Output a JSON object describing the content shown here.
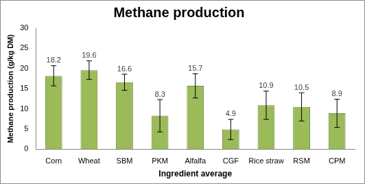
{
  "chart_data": {
    "type": "bar",
    "title": "Methane production",
    "x_label": "Ingredient average",
    "y_label": "Methane production (g/kg DM)",
    "categories": [
      "Corn",
      "Wheat",
      "SBM",
      "PKM",
      "Alfalfa",
      "CGF",
      "Rice straw",
      "RSM",
      "CPM"
    ],
    "values": [
      18.2,
      19.6,
      16.6,
      8.3,
      15.7,
      4.9,
      10.9,
      10.5,
      8.9
    ],
    "errors": [
      2.5,
      2.3,
      2.0,
      4.0,
      3.0,
      2.5,
      3.5,
      3.5,
      3.5
    ],
    "color": "#9bbb59",
    "ylim": [
      0,
      30
    ],
    "yticks": [
      0,
      5,
      10,
      15,
      20,
      25,
      30
    ],
    "grid": false,
    "data_labels": true
  }
}
